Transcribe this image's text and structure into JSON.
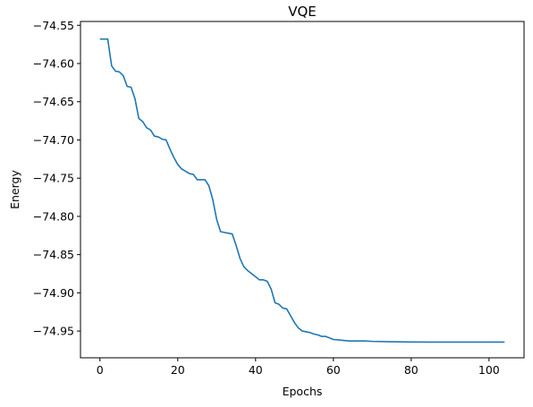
{
  "chart_data": {
    "type": "line",
    "title": "VQE",
    "xlabel": "Epochs",
    "ylabel": "Energy",
    "xlim": [
      -5,
      109
    ],
    "ylim": [
      -74.985,
      -74.545
    ],
    "xticks": [
      0,
      20,
      40,
      60,
      80,
      100
    ],
    "xtick_labels": [
      "0",
      "20",
      "40",
      "60",
      "80",
      "100"
    ],
    "yticks": [
      -74.55,
      -74.6,
      -74.65,
      -74.7,
      -74.75,
      -74.8,
      -74.85,
      -74.9,
      -74.95
    ],
    "ytick_labels": [
      "−74.55",
      "−74.60",
      "−74.65",
      "−74.70",
      "−74.75",
      "−74.80",
      "−74.85",
      "−74.90",
      "−74.95"
    ],
    "grid": false,
    "series": [
      {
        "color": "#1f77b4",
        "x": [
          0,
          1,
          2,
          3,
          4,
          5,
          6,
          7,
          8,
          9,
          10,
          11,
          12,
          13,
          14,
          15,
          16,
          17,
          18,
          19,
          20,
          21,
          22,
          23,
          24,
          25,
          26,
          27,
          28,
          29,
          30,
          31,
          32,
          33,
          34,
          35,
          36,
          37,
          38,
          39,
          40,
          41,
          42,
          43,
          44,
          45,
          46,
          47,
          48,
          49,
          50,
          51,
          52,
          53,
          54,
          55,
          56,
          57,
          58,
          59,
          60,
          62,
          64,
          66,
          68,
          70,
          75,
          80,
          85,
          90,
          95,
          100,
          104
        ],
        "y": [
          -74.568,
          -74.568,
          -74.568,
          -74.603,
          -74.61,
          -74.611,
          -74.616,
          -74.63,
          -74.631,
          -74.646,
          -74.672,
          -74.676,
          -74.684,
          -74.687,
          -74.695,
          -74.696,
          -74.699,
          -74.7,
          -74.712,
          -74.723,
          -74.732,
          -74.738,
          -74.741,
          -74.744,
          -74.745,
          -74.752,
          -74.752,
          -74.752,
          -74.76,
          -74.778,
          -74.804,
          -74.82,
          -74.821,
          -74.822,
          -74.823,
          -74.838,
          -74.855,
          -74.866,
          -74.871,
          -74.875,
          -74.879,
          -74.883,
          -74.883,
          -74.885,
          -74.895,
          -74.913,
          -74.915,
          -74.92,
          -74.921,
          -74.93,
          -74.939,
          -74.946,
          -74.95,
          -74.951,
          -74.952,
          -74.954,
          -74.955,
          -74.957,
          -74.957,
          -74.959,
          -74.961,
          -74.962,
          -74.963,
          -74.963,
          -74.963,
          -74.9635,
          -74.964,
          -74.9643,
          -74.9645,
          -74.9645,
          -74.9645,
          -74.9645,
          -74.9645
        ]
      }
    ]
  }
}
